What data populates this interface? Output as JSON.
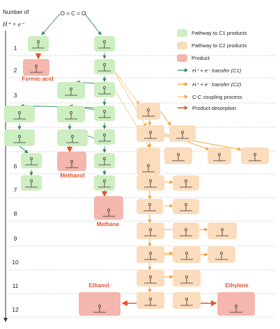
{
  "axis": {
    "title_line1": "Number of",
    "title_line2": "H⁺ + e⁻",
    "steps": [
      "1",
      "2",
      "3",
      "4",
      "5",
      "6",
      "7",
      "8",
      "9",
      "10",
      "11",
      "12"
    ]
  },
  "reactant": "O = C = O",
  "legend": {
    "c1": "Pathway to C1 products",
    "c2": "Pathway to C2 products",
    "product": "Product",
    "transfer_c1": "H⁺ + e⁻ transfer (C1)",
    "transfer_c2": "H⁺ + e⁻ transfer (C2)",
    "coupling": "C-C coupling process",
    "desorption": "Product desorption"
  },
  "products": {
    "formic_acid": "Formic acid",
    "methanol": "Methanol",
    "methane": "Methane",
    "ethanol": "Ethanol",
    "ethylene": "Ethylene"
  },
  "colors": {
    "c1_box": "#cdeec0",
    "c2_box": "#fbdcbc",
    "product_box": "#f4b6ad",
    "c1_arrow": "#2e8b57",
    "c2_arrow": "#f0a030",
    "coupling_arrow": "#f0a030",
    "desorption_arrow": "#e8502e",
    "product_label": "#e8502e"
  }
}
